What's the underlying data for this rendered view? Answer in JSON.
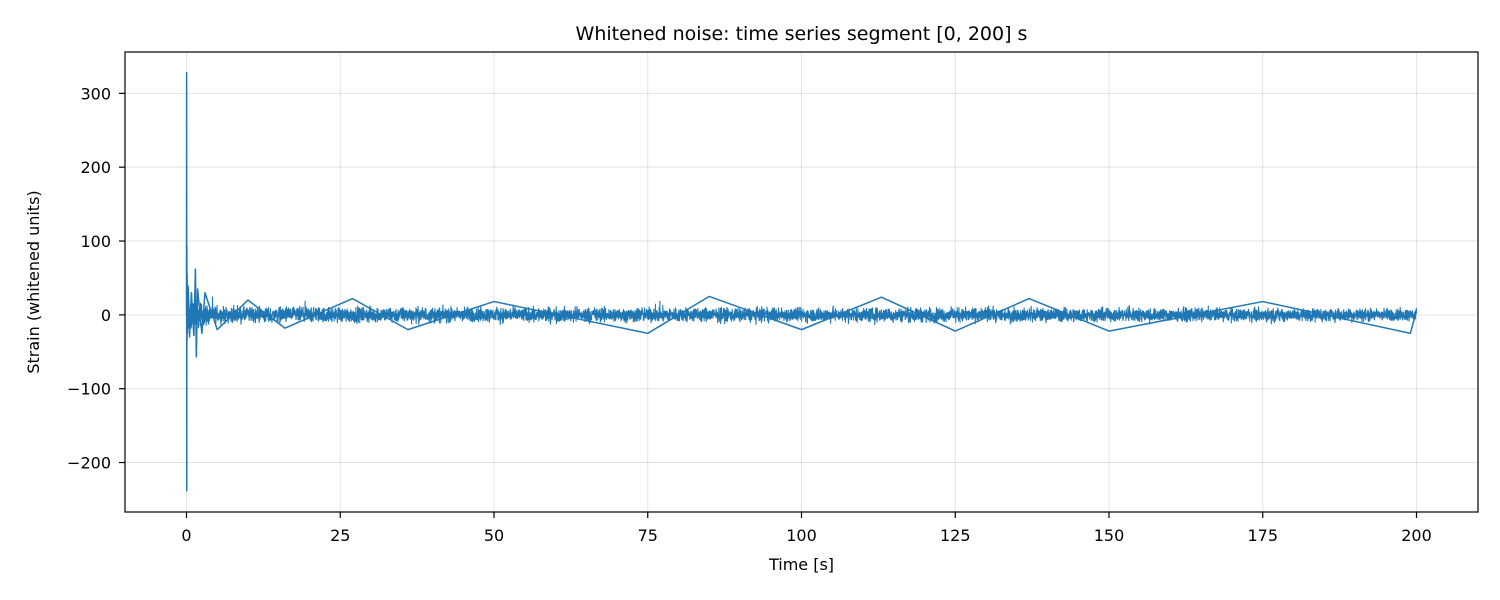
{
  "chart_data": {
    "type": "line",
    "title": "Whitened noise: time series segment [0, 200] s",
    "xlabel": "Time [s]",
    "ylabel": "Strain (whitened units)",
    "xlim": [
      -10,
      210
    ],
    "ylim": [
      -267,
      356
    ],
    "x_ticks": [
      0,
      25,
      50,
      75,
      100,
      125,
      150,
      175,
      200
    ],
    "x_tick_labels": [
      "0",
      "25",
      "50",
      "75",
      "100",
      "125",
      "150",
      "175",
      "200"
    ],
    "y_ticks": [
      -200,
      -100,
      0,
      100,
      200,
      300
    ],
    "y_tick_labels": [
      "−200",
      "−100",
      "0",
      "100",
      "200",
      "300"
    ],
    "grid": true,
    "legend": "none",
    "series": [
      {
        "color": "#1f77b4",
        "x": [
          0.0,
          0.02,
          0.04,
          0.06,
          0.08,
          0.1,
          0.15,
          0.2,
          0.3,
          0.5,
          0.8,
          1.2,
          1.45,
          1.6,
          1.8,
          2.5,
          3.0,
          5.0,
          10.0,
          16.0,
          27.0,
          36.0,
          50.0,
          75.0,
          85.0,
          100.0,
          113.0,
          125.0,
          137.0,
          150.0,
          175.0,
          199.0,
          200.0
        ],
        "y": [
          0,
          328,
          -238,
          92,
          -35,
          55,
          -25,
          40,
          35,
          -30,
          30,
          -28,
          62,
          -57,
          35,
          -25,
          30,
          -20,
          20,
          -18,
          22,
          -20,
          18,
          -25,
          25,
          -20,
          24,
          -22,
          22,
          -22,
          18,
          -25,
          5
        ],
        "noise_envelope": {
          "x": [
            0.0,
            2.0,
            5.0,
            200.0
          ],
          "amplitude": [
            45,
            25,
            15,
            12
          ]
        }
      }
    ]
  }
}
